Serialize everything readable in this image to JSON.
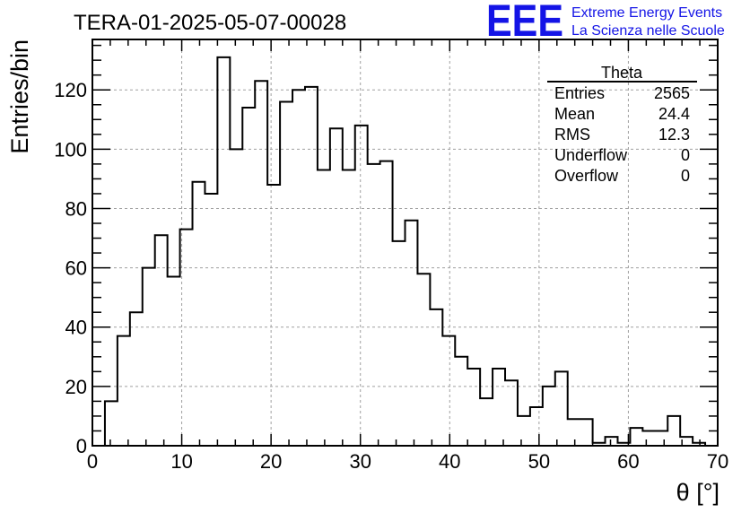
{
  "chart_data": {
    "type": "bar",
    "title": "TERA-01-2025-05-07-00028",
    "xlabel": "θ [°]",
    "ylabel": "Entries/bin",
    "xlim": [
      0,
      70
    ],
    "ylim": [
      0,
      137
    ],
    "x_ticks": [
      0,
      10,
      20,
      30,
      40,
      50,
      60,
      70
    ],
    "y_ticks": [
      0,
      20,
      40,
      60,
      80,
      100,
      120
    ],
    "grid": true,
    "bin_width": 1.4,
    "bin_start": 1.4,
    "values": [
      15,
      37,
      45,
      60,
      71,
      57,
      73,
      89,
      85,
      131,
      100,
      114,
      123,
      88,
      116,
      120,
      121,
      93,
      107,
      93,
      108,
      95,
      96,
      69,
      76,
      58,
      46,
      37,
      30,
      26,
      16,
      26,
      22,
      10,
      13,
      20,
      25,
      9,
      9,
      1,
      3,
      1,
      6,
      5,
      5,
      10,
      3,
      1
    ],
    "stats_box": {
      "name": "Theta",
      "rows": [
        {
          "label": "Entries",
          "value": "2565"
        },
        {
          "label": "Mean",
          "value": "24.4"
        },
        {
          "label": "RMS",
          "value": "12.3"
        },
        {
          "label": "Underflow",
          "value": "0"
        },
        {
          "label": "Overflow",
          "value": "0"
        }
      ]
    }
  },
  "logo": {
    "mark": "EEE",
    "line1": "Extreme Energy Events",
    "line2": "La Scienza nelle Scuole"
  },
  "colors": {
    "line": "#000000",
    "grid": "#a0a0a0",
    "logo": "#1414e6"
  }
}
